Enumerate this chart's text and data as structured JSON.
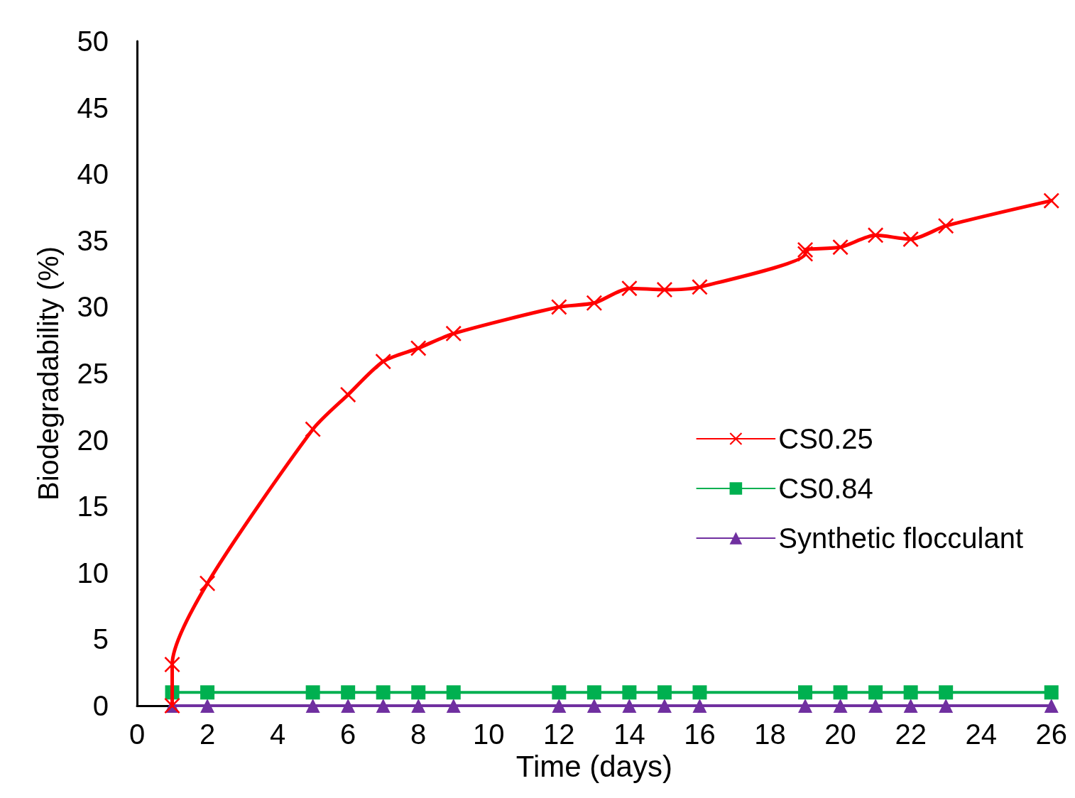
{
  "chart_data": {
    "type": "line",
    "xlabel": "Time (days)",
    "ylabel": "Biodegradability (%)",
    "xlim": [
      0,
      26
    ],
    "xticks": [
      0,
      2,
      4,
      6,
      8,
      10,
      12,
      14,
      16,
      18,
      20,
      22,
      24,
      26
    ],
    "ylim": [
      0,
      50
    ],
    "yticks": [
      0,
      5,
      10,
      15,
      20,
      25,
      30,
      35,
      40,
      45,
      50
    ],
    "grid": false,
    "legend": "right",
    "series": [
      {
        "name": "CS0.25",
        "color": "#ff0000",
        "marker": "cross",
        "x": [
          1,
          1,
          2,
          5,
          6,
          7,
          8,
          9,
          12,
          13,
          14,
          15,
          16,
          19,
          19,
          20,
          21,
          22,
          23,
          26
        ],
        "values": [
          0,
          3.1,
          9.2,
          20.8,
          23.4,
          25.9,
          26.9,
          28.0,
          30.0,
          30.3,
          31.4,
          31.3,
          31.5,
          34.0,
          34.3,
          34.5,
          35.4,
          35.1,
          36.1,
          38.0
        ]
      },
      {
        "name": "CS0.84",
        "color": "#00b050",
        "marker": "square",
        "x": [
          1,
          2,
          5,
          6,
          7,
          8,
          9,
          12,
          13,
          14,
          15,
          16,
          19,
          20,
          21,
          22,
          23,
          26
        ],
        "values": [
          1,
          1,
          1,
          1,
          1,
          1,
          1,
          1,
          1,
          1,
          1,
          1,
          1,
          1,
          1,
          1,
          1,
          1
        ]
      },
      {
        "name": "Synthetic flocculant",
        "color": "#7030a0",
        "marker": "triangle",
        "x": [
          1,
          2,
          5,
          6,
          7,
          8,
          9,
          12,
          13,
          14,
          15,
          16,
          19,
          20,
          21,
          22,
          23,
          26
        ],
        "values": [
          0,
          0,
          0,
          0,
          0,
          0,
          0,
          0,
          0,
          0,
          0,
          0,
          0,
          0,
          0,
          0,
          0,
          0
        ]
      }
    ]
  }
}
